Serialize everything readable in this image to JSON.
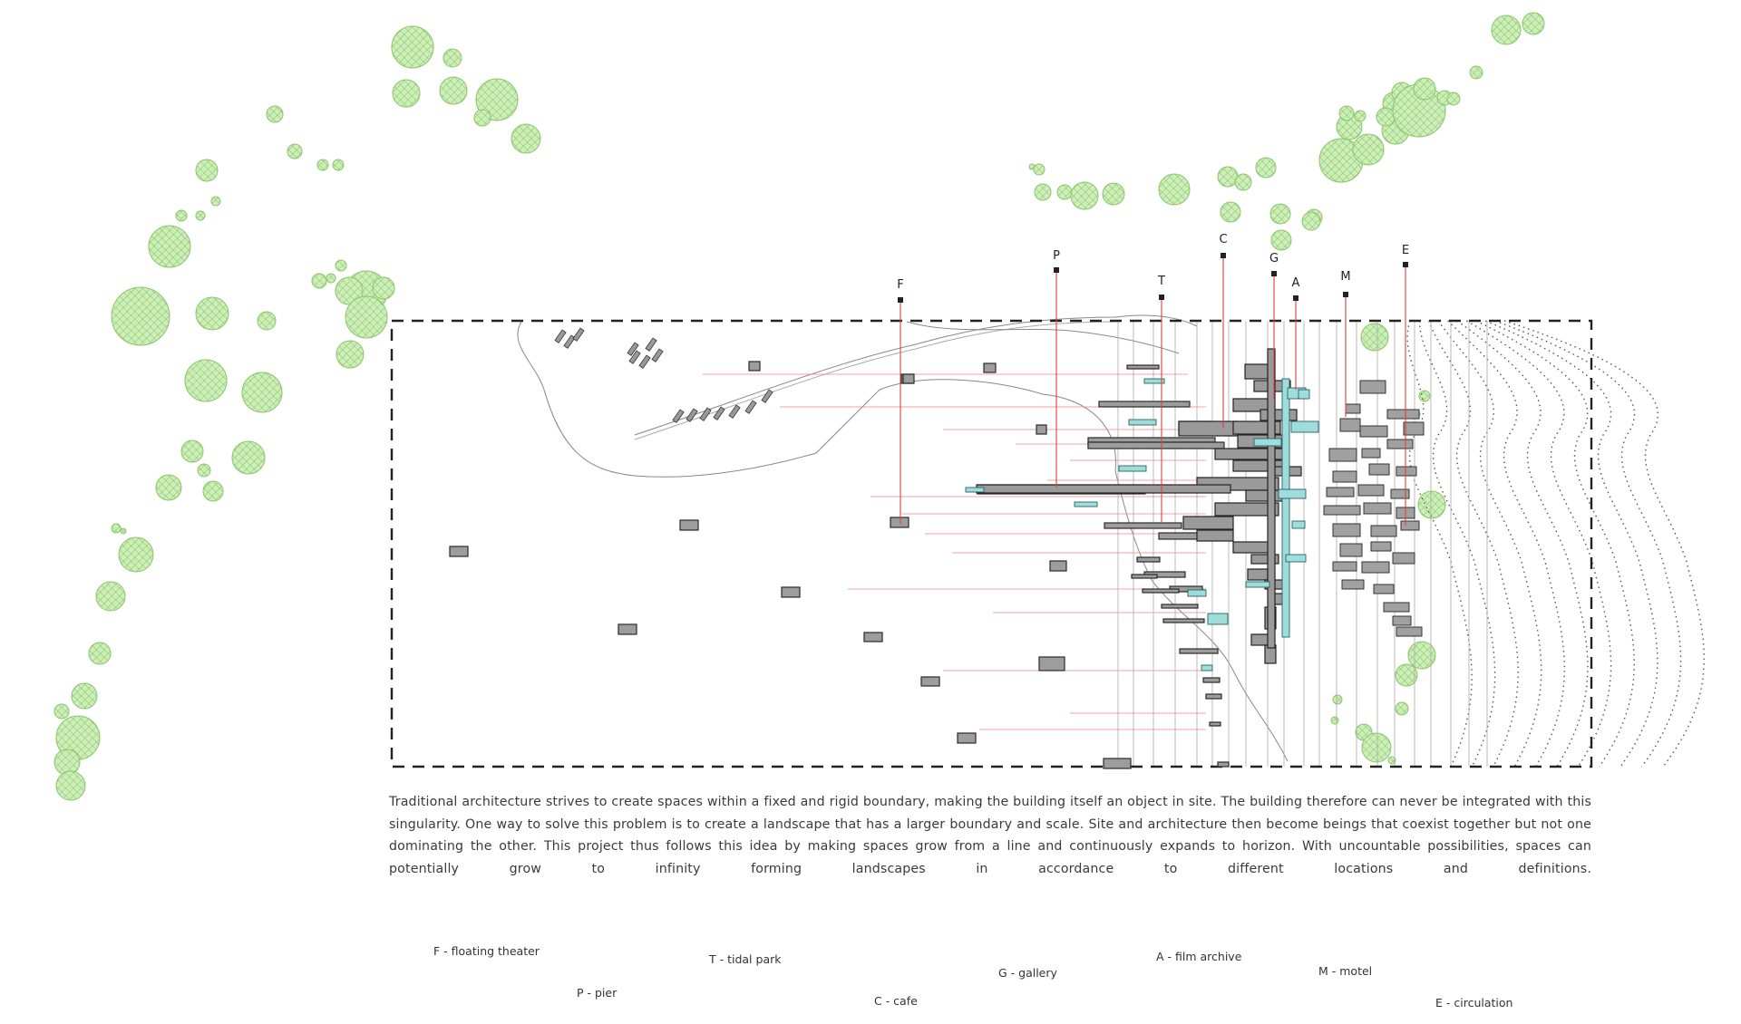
{
  "markers": [
    {
      "id": "f",
      "letter": "F"
    },
    {
      "id": "p",
      "letter": "P"
    },
    {
      "id": "t",
      "letter": "T"
    },
    {
      "id": "c",
      "letter": "C"
    },
    {
      "id": "g",
      "letter": "G"
    },
    {
      "id": "a",
      "letter": "A"
    },
    {
      "id": "m",
      "letter": "M"
    },
    {
      "id": "e",
      "letter": "E"
    }
  ],
  "description": "Traditional architecture strives to create spaces within a fixed and rigid boundary, making the building itself an object in site. The building therefore can never be integrated with this singularity. One way to solve this problem is to create a landscape that has a larger boundary and scale. Site and architecture then become beings that coexist together but not one dominating the other. This project thus follows this idea by making spaces grow from a line and continuously expands to horizon. With uncountable possibilities, spaces can potentially grow to infinity forming landscapes in accordance to different locations and definitions.",
  "legend": {
    "f": "F - floating theater",
    "p": "P - pier",
    "t": "T - tidal park",
    "c": "C - cafe",
    "g": "G - gallery",
    "a": "A - film archive",
    "m": "M - motel",
    "e": "E - circulation"
  },
  "colors": {
    "tree_fill": "#c9ecb4",
    "tree_stroke": "#7fbf5f",
    "block_fill": "#9a9a9a",
    "block_stroke": "#333333",
    "teal": "#8fd4d4",
    "red_line": "#e04040",
    "boundary": "#222222"
  },
  "icons": [
    "tree-icon",
    "tree-hatch-icon"
  ]
}
